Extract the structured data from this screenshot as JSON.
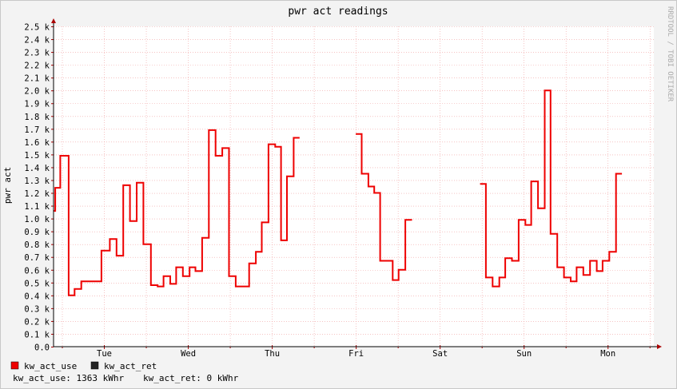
{
  "chart_data": {
    "type": "line",
    "title": "pwr act readings",
    "ylabel": "pwr act",
    "xlabel": "",
    "watermark": "RRDTOOL / TOBI OETIKER",
    "ylim": [
      0,
      2500
    ],
    "y_ticks": [
      0,
      100,
      200,
      300,
      400,
      500,
      600,
      700,
      800,
      900,
      1000,
      1100,
      1200,
      1300,
      1400,
      1500,
      1600,
      1700,
      1800,
      1900,
      2000,
      2100,
      2200,
      2300,
      2400,
      2500
    ],
    "y_tick_labels": [
      "0.0",
      "0.1 k",
      "0.2 k",
      "0.3 k",
      "0.4 k",
      "0.5 k",
      "0.6 k",
      "0.7 k",
      "0.8 k",
      "0.9 k",
      "1.0 k",
      "1.1 k",
      "1.2 k",
      "1.3 k",
      "1.4 k",
      "1.5 k",
      "1.6 k",
      "1.7 k",
      "1.8 k",
      "1.9 k",
      "2.0 k",
      "2.1 k",
      "2.2 k",
      "2.3 k",
      "2.4 k",
      "2.5 k"
    ],
    "xlim": [
      -0.6,
      6.55
    ],
    "x_ticks": [
      0,
      1,
      2,
      3,
      4,
      5,
      6
    ],
    "x_tick_labels": [
      "Tue",
      "Wed",
      "Thu",
      "Fri",
      "Sat",
      "Sun",
      "Mon"
    ],
    "x_minor_ticks": [
      -0.5,
      0.5,
      1.5,
      2.5,
      3.5,
      4.5,
      5.5,
      6.5
    ],
    "grid": true,
    "legend_position": "bottom-left",
    "series": [
      {
        "name": "kw_act_use",
        "color": "#ee0000",
        "segments": [
          [
            [
              -0.6,
              1060
            ],
            [
              -0.58,
              1060
            ],
            [
              -0.58,
              1240
            ],
            [
              -0.52,
              1240
            ],
            [
              -0.52,
              1490
            ],
            [
              -0.45,
              1490
            ],
            [
              -0.45,
              1490
            ],
            [
              -0.42,
              1490
            ],
            [
              -0.42,
              400
            ],
            [
              -0.35,
              400
            ],
            [
              -0.35,
              450
            ],
            [
              -0.27,
              450
            ],
            [
              -0.27,
              510
            ],
            [
              -0.03,
              510
            ],
            [
              -0.03,
              750
            ],
            [
              0.07,
              750
            ],
            [
              0.07,
              840
            ],
            [
              0.15,
              840
            ],
            [
              0.15,
              710
            ],
            [
              0.23,
              710
            ],
            [
              0.23,
              1260
            ],
            [
              0.31,
              1260
            ],
            [
              0.31,
              980
            ],
            [
              0.39,
              980
            ],
            [
              0.39,
              1280
            ],
            [
              0.47,
              1280
            ],
            [
              0.47,
              800
            ],
            [
              0.56,
              800
            ],
            [
              0.56,
              480
            ],
            [
              0.64,
              480
            ],
            [
              0.64,
              470
            ],
            [
              0.71,
              470
            ],
            [
              0.71,
              550
            ],
            [
              0.79,
              550
            ],
            [
              0.79,
              490
            ],
            [
              0.86,
              490
            ],
            [
              0.86,
              620
            ],
            [
              0.94,
              620
            ],
            [
              0.94,
              550
            ],
            [
              1.02,
              550
            ],
            [
              1.02,
              620
            ],
            [
              1.09,
              620
            ],
            [
              1.09,
              590
            ],
            [
              1.17,
              590
            ],
            [
              1.17,
              850
            ],
            [
              1.25,
              850
            ],
            [
              1.25,
              1690
            ],
            [
              1.33,
              1690
            ],
            [
              1.33,
              1490
            ],
            [
              1.41,
              1490
            ],
            [
              1.41,
              1550
            ],
            [
              1.49,
              1550
            ],
            [
              1.49,
              550
            ],
            [
              1.57,
              550
            ],
            [
              1.57,
              470
            ],
            [
              1.73,
              470
            ],
            [
              1.73,
              650
            ],
            [
              1.81,
              650
            ],
            [
              1.81,
              740
            ],
            [
              1.88,
              740
            ],
            [
              1.88,
              970
            ],
            [
              1.96,
              970
            ],
            [
              1.96,
              1580
            ],
            [
              2.04,
              1580
            ],
            [
              2.04,
              1560
            ],
            [
              2.11,
              1560
            ],
            [
              2.11,
              830
            ],
            [
              2.18,
              830
            ],
            [
              2.18,
              1330
            ],
            [
              2.26,
              1330
            ],
            [
              2.26,
              1630
            ],
            [
              2.33,
              1630
            ]
          ],
          [
            [
              3.0,
              1660
            ],
            [
              3.07,
              1660
            ],
            [
              3.07,
              1350
            ],
            [
              3.15,
              1350
            ],
            [
              3.15,
              1250
            ],
            [
              3.22,
              1250
            ],
            [
              3.22,
              1200
            ],
            [
              3.29,
              1200
            ],
            [
              3.29,
              670
            ],
            [
              3.44,
              670
            ],
            [
              3.44,
              520
            ],
            [
              3.51,
              520
            ],
            [
              3.51,
              600
            ],
            [
              3.59,
              600
            ],
            [
              3.59,
              990
            ],
            [
              3.67,
              990
            ]
          ],
          [
            [
              4.48,
              1270
            ],
            [
              4.55,
              1270
            ],
            [
              4.55,
              540
            ],
            [
              4.63,
              540
            ],
            [
              4.63,
              470
            ],
            [
              4.71,
              470
            ],
            [
              4.71,
              540
            ],
            [
              4.78,
              540
            ],
            [
              4.78,
              690
            ],
            [
              4.86,
              690
            ],
            [
              4.86,
              670
            ],
            [
              4.94,
              670
            ],
            [
              4.94,
              990
            ],
            [
              5.02,
              990
            ],
            [
              5.02,
              950
            ],
            [
              5.09,
              950
            ],
            [
              5.09,
              1290
            ],
            [
              5.17,
              1290
            ],
            [
              5.17,
              1080
            ],
            [
              5.25,
              1080
            ],
            [
              5.25,
              2000
            ],
            [
              5.32,
              2000
            ],
            [
              5.32,
              880
            ],
            [
              5.4,
              880
            ],
            [
              5.4,
              620
            ],
            [
              5.48,
              620
            ],
            [
              5.48,
              540
            ],
            [
              5.56,
              540
            ],
            [
              5.56,
              510
            ],
            [
              5.63,
              510
            ],
            [
              5.63,
              620
            ],
            [
              5.71,
              620
            ],
            [
              5.71,
              560
            ],
            [
              5.79,
              560
            ],
            [
              5.79,
              670
            ],
            [
              5.87,
              670
            ],
            [
              5.87,
              590
            ],
            [
              5.94,
              590
            ],
            [
              5.94,
              670
            ],
            [
              6.02,
              670
            ],
            [
              6.02,
              740
            ],
            [
              6.1,
              740
            ],
            [
              6.1,
              1350
            ],
            [
              6.17,
              1350
            ]
          ]
        ]
      },
      {
        "name": "kw_act_ret",
        "color": "#222222",
        "segments": []
      }
    ]
  },
  "summary": {
    "use_label": "kw_act_use: 1363 kWhr",
    "ret_label": "kw_act_ret: 0 kWhr"
  }
}
